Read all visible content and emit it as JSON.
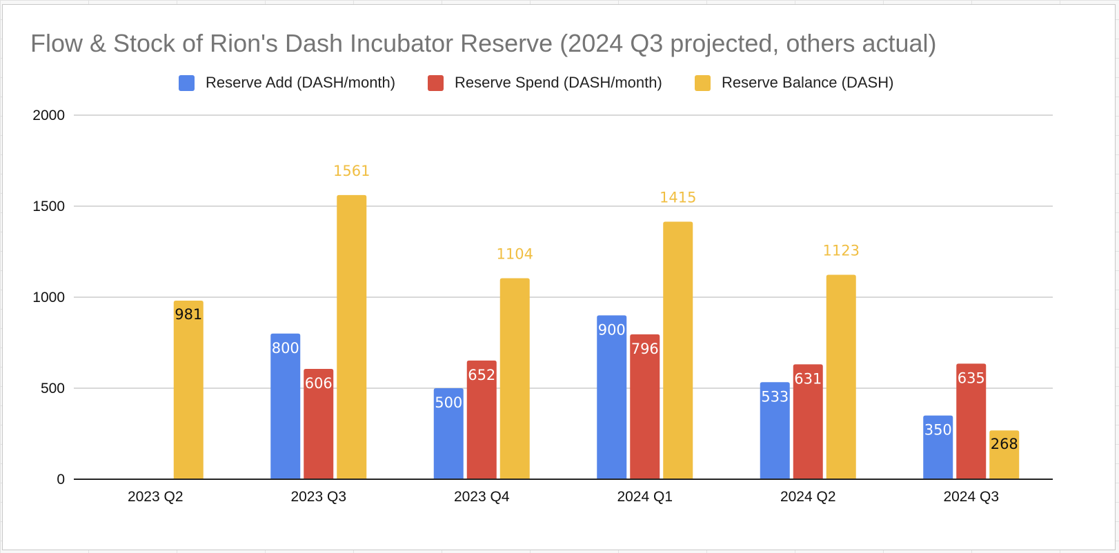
{
  "chart_data": {
    "type": "bar",
    "title": "Flow & Stock of Rion's Dash Incubator Reserve (2024 Q3 projected, others actual)",
    "xlabel": "",
    "ylabel": "",
    "categories": [
      "2023 Q2",
      "2023 Q3",
      "2023 Q4",
      "2024 Q1",
      "2024 Q2",
      "2024 Q3"
    ],
    "ylim": [
      0,
      2000
    ],
    "yticks": [
      0,
      500,
      1000,
      1500,
      2000
    ],
    "grid": true,
    "legend_position": "top",
    "series": [
      {
        "name": "Reserve Add (DASH/month)",
        "color": "#5585EA",
        "values": [
          null,
          800,
          500,
          900,
          533,
          350
        ],
        "labels": [
          "",
          "800",
          "500",
          "900",
          "533",
          "350"
        ]
      },
      {
        "name": "Reserve Spend (DASH/month)",
        "color": "#D65041",
        "values": [
          null,
          606,
          652,
          796,
          631,
          635
        ],
        "labels": [
          "",
          "606",
          "652",
          "796",
          "631",
          "635"
        ]
      },
      {
        "name": "Reserve Balance (DASH)",
        "color": "#F0BE42",
        "values": [
          981,
          1561,
          1104,
          1415,
          1123,
          268
        ],
        "labels": [
          "981",
          "1561",
          "1104",
          "1415",
          "1123",
          "268"
        ]
      }
    ]
  }
}
